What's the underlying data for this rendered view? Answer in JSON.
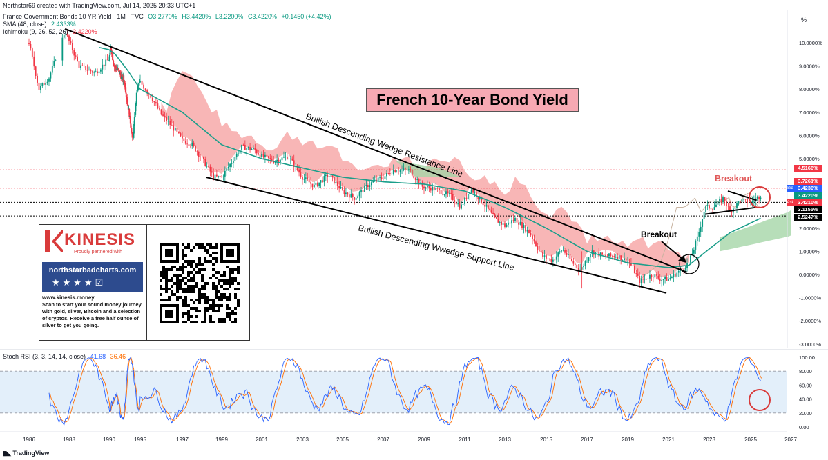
{
  "header": {
    "created": "Northstar69 created with TradingView.com, Jul 14, 2025 20:33 UTC+1",
    "symbol": "France Government Bonds 10 YR Yield · 1M · TVC",
    "ohlc": {
      "o": "O3.2770%",
      "h": "H3.4420%",
      "l": "L3.2200%",
      "c": "C3.4220%",
      "chg": "+0.1450 (+4.42%)"
    },
    "sma_label": "SMA (48, close)",
    "sma_value": "2.4333%",
    "ichimoku_label": "Ichimoku (9, 26, 52, 26)",
    "ichimoku_value": "3.4220%",
    "unit": "%"
  },
  "title": "French 10-Year Bond Yield",
  "annotations": {
    "resistance": "Bullish Descending Wedge Resistance Line",
    "support": "Bullish Descending Wwedge Support Line",
    "breakout1": "Breakout",
    "breakout2": "Breakout"
  },
  "ad": {
    "brand": "KINESIS",
    "partner": "Proudly partnered with",
    "site_banner": "northstarbadcharts.com",
    "stars": "★★★★☑",
    "website": "www.kinesis.money",
    "body": "Scan to start your sound money journey with gold, silver, Bitcoin and a selection of cryptos. Receive a free half ounce of silver to get you going."
  },
  "price_tags": {
    "t1": "4.5166%",
    "t2": "3.7261%",
    "t3": "3.4230%",
    "t4": "3.4220%",
    "t5": "3.4210%",
    "t6": "3.1155%",
    "t7": "2.5247%",
    "bid": "Bid",
    "ask": "Ask"
  },
  "indicator": {
    "label": "Stoch RSI (3, 3, 14, 14, close)",
    "k_value": "41.68",
    "d_value": "36.46",
    "colors": {
      "k": "#2962ff",
      "d": "#ff6d00",
      "band": "#e3effa"
    }
  },
  "footer": {
    "brand": "TradingView"
  },
  "colors": {
    "up": "#089981",
    "down": "#f23645",
    "sma": "#1b9e8a",
    "cloud_bear": "#f7a9a9",
    "cloud_bull": "#a5d6a7",
    "lagging": "#c8b3a0"
  },
  "chart_data": {
    "type": "candlestick",
    "interval": "1M",
    "y_axis": {
      "unit": "%",
      "range": [
        -3.0,
        10.0
      ],
      "ticks": [
        "10.0000%",
        "9.0000%",
        "8.0000%",
        "7.0000%",
        "6.0000%",
        "5.0000%",
        "4.0000%",
        "3.0000%",
        "2.0000%",
        "1.0000%",
        "0.0000%",
        "-1.0000%",
        "-2.0000%",
        "-3.0000%"
      ]
    },
    "x_axis": {
      "ticks": [
        "1986",
        "1988",
        "1990",
        "1995",
        "1997",
        "1999",
        "2001",
        "2003",
        "2005",
        "2007",
        "2009",
        "2011",
        "2013",
        "2015",
        "2017",
        "2019",
        "2021",
        "2023",
        "2025",
        "2027"
      ]
    },
    "price_path": [
      [
        1986.0,
        10.0
      ],
      [
        1986.5,
        8.0
      ],
      [
        1987.0,
        8.5
      ],
      [
        1987.4,
        9.5
      ],
      [
        1987.8,
        10.5
      ],
      [
        1988.5,
        9.0
      ],
      [
        1989.3,
        8.7
      ],
      [
        1990.0,
        9.3
      ],
      [
        1990.3,
        9.8
      ],
      [
        1990.8,
        9.0
      ],
      [
        1991.5,
        8.8
      ],
      [
        1992.0,
        8.5
      ],
      [
        1992.4,
        8.4
      ],
      [
        1993.2,
        7.0
      ],
      [
        1993.8,
        5.8
      ],
      [
        1994.5,
        8.0
      ],
      [
        1995.0,
        8.3
      ],
      [
        1995.5,
        7.7
      ],
      [
        1996.0,
        6.9
      ],
      [
        1996.5,
        6.4
      ],
      [
        1997.0,
        5.8
      ],
      [
        1997.5,
        5.6
      ],
      [
        1998.0,
        5.0
      ],
      [
        1998.6,
        4.2
      ],
      [
        1999.0,
        4.2
      ],
      [
        1999.6,
        5.0
      ],
      [
        2000.0,
        5.5
      ],
      [
        2000.6,
        5.4
      ],
      [
        2001.0,
        5.1
      ],
      [
        2001.6,
        4.9
      ],
      [
        2002.3,
        5.1
      ],
      [
        2003.0,
        4.2
      ],
      [
        2003.6,
        3.8
      ],
      [
        2004.3,
        4.3
      ],
      [
        2005.0,
        3.6
      ],
      [
        2005.6,
        3.3
      ],
      [
        2006.3,
        3.9
      ],
      [
        2007.0,
        4.2
      ],
      [
        2007.5,
        4.5
      ],
      [
        2008.3,
        4.5
      ],
      [
        2008.9,
        3.8
      ],
      [
        2009.5,
        3.7
      ],
      [
        2010.3,
        3.4
      ],
      [
        2010.8,
        2.9
      ],
      [
        2011.3,
        3.7
      ],
      [
        2011.9,
        3.1
      ],
      [
        2012.5,
        2.4
      ],
      [
        2013.0,
        2.1
      ],
      [
        2013.5,
        2.4
      ],
      [
        2014.2,
        1.8
      ],
      [
        2014.8,
        0.8
      ],
      [
        2015.3,
        0.6
      ],
      [
        2015.8,
        1.1
      ],
      [
        2016.3,
        0.5
      ],
      [
        2016.7,
        0.2
      ],
      [
        2017.2,
        1.0
      ],
      [
        2017.8,
        0.8
      ],
      [
        2018.5,
        0.8
      ],
      [
        2019.1,
        0.5
      ],
      [
        2019.6,
        -0.3
      ],
      [
        2020.2,
        0.0
      ],
      [
        2020.6,
        -0.2
      ],
      [
        2021.0,
        -0.2
      ],
      [
        2021.6,
        0.2
      ],
      [
        2022.0,
        0.5
      ],
      [
        2022.4,
        1.5
      ],
      [
        2022.8,
        2.9
      ],
      [
        2023.2,
        2.9
      ],
      [
        2023.7,
        3.3
      ],
      [
        2024.0,
        2.7
      ],
      [
        2024.5,
        3.2
      ],
      [
        2025.0,
        3.1
      ],
      [
        2025.5,
        3.42
      ]
    ],
    "sma48_path": [
      [
        1989.5,
        9.8
      ],
      [
        1991.0,
        9.5
      ],
      [
        1993.0,
        8.8
      ],
      [
        1995.0,
        8.0
      ],
      [
        1997.0,
        7.0
      ],
      [
        1999.0,
        5.6
      ],
      [
        2001.0,
        5.0
      ],
      [
        2003.0,
        4.6
      ],
      [
        2005.0,
        4.2
      ],
      [
        2007.0,
        4.0
      ],
      [
        2009.0,
        3.9
      ],
      [
        2011.0,
        3.6
      ],
      [
        2013.0,
        2.9
      ],
      [
        2015.0,
        2.0
      ],
      [
        2017.0,
        1.0
      ],
      [
        2019.0,
        0.5
      ],
      [
        2021.0,
        0.3
      ],
      [
        2022.0,
        0.4
      ],
      [
        2023.0,
        1.1
      ],
      [
        2024.0,
        1.8
      ],
      [
        2025.5,
        2.43
      ]
    ],
    "trendlines": {
      "resistance": [
        [
          1987.8,
          10.6
        ],
        [
          2021.9,
          0.1
        ]
      ],
      "support": [
        [
          1998.2,
          4.2
        ],
        [
          2020.9,
          -0.8
        ]
      ],
      "triangle_upper": [
        [
          2023.9,
          3.6
        ],
        [
          2025.3,
          3.2
        ]
      ],
      "triangle_lower": [
        [
          2022.8,
          2.6
        ],
        [
          2025.3,
          2.9
        ]
      ]
    },
    "levels": [
      4.5166,
      3.7261,
      3.1155,
      2.5247
    ],
    "stoch_rsi": {
      "range": [
        0,
        100
      ],
      "ticks": [
        "100.00",
        "80.00",
        "60.00",
        "40.00",
        "20.00",
        "0.00"
      ],
      "band": [
        20,
        80
      ],
      "latest_k": 41.68,
      "latest_d": 36.46
    }
  }
}
